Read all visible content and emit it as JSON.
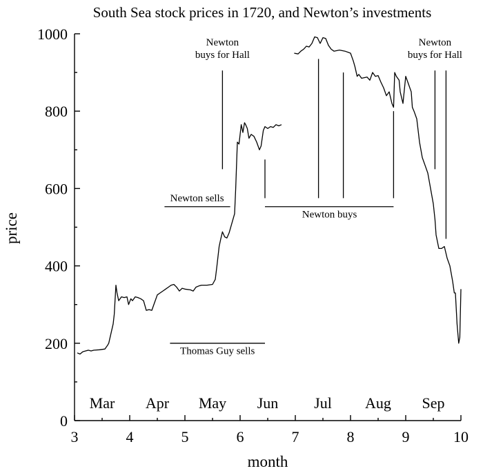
{
  "chart_data": {
    "type": "line",
    "title": "South Sea stock prices in 1720, and Newton’s investments",
    "xlabel": "month",
    "ylabel": "price",
    "xlim": [
      3,
      10
    ],
    "ylim": [
      0,
      1000
    ],
    "xticks": [
      3,
      4,
      5,
      6,
      7,
      8,
      9,
      10
    ],
    "yticks": [
      0,
      200,
      400,
      600,
      800,
      1000
    ],
    "month_labels": [
      {
        "label": "Mar",
        "x": 3.5
      },
      {
        "label": "Apr",
        "x": 4.5
      },
      {
        "label": "May",
        "x": 5.5
      },
      {
        "label": "Jun",
        "x": 6.5
      },
      {
        "label": "Jul",
        "x": 7.5
      },
      {
        "label": "Aug",
        "x": 8.5
      },
      {
        "label": "Sep",
        "x": 9.5
      }
    ],
    "series": [
      {
        "name": "South Sea stock price (segment 1)",
        "points": [
          [
            3.05,
            175
          ],
          [
            3.1,
            172
          ],
          [
            3.15,
            178
          ],
          [
            3.2,
            180
          ],
          [
            3.25,
            182
          ],
          [
            3.3,
            180
          ],
          [
            3.35,
            182
          ],
          [
            3.45,
            183
          ],
          [
            3.55,
            185
          ],
          [
            3.6,
            195
          ],
          [
            3.62,
            200
          ],
          [
            3.66,
            225
          ],
          [
            3.7,
            250
          ],
          [
            3.72,
            275
          ],
          [
            3.75,
            350
          ],
          [
            3.77,
            330
          ],
          [
            3.8,
            310
          ],
          [
            3.85,
            320
          ],
          [
            3.9,
            318
          ],
          [
            3.95,
            320
          ],
          [
            3.98,
            300
          ],
          [
            4.02,
            315
          ],
          [
            4.05,
            310
          ],
          [
            4.1,
            320
          ],
          [
            4.15,
            318
          ],
          [
            4.2,
            315
          ],
          [
            4.25,
            310
          ],
          [
            4.3,
            285
          ],
          [
            4.35,
            287
          ],
          [
            4.4,
            285
          ],
          [
            4.45,
            305
          ],
          [
            4.5,
            325
          ],
          [
            4.55,
            330
          ],
          [
            4.6,
            335
          ],
          [
            4.65,
            340
          ],
          [
            4.7,
            345
          ],
          [
            4.75,
            350
          ],
          [
            4.8,
            352
          ],
          [
            4.85,
            345
          ],
          [
            4.9,
            335
          ],
          [
            4.95,
            342
          ],
          [
            5.0,
            340
          ],
          [
            5.1,
            338
          ],
          [
            5.15,
            335
          ],
          [
            5.2,
            345
          ],
          [
            5.25,
            348
          ],
          [
            5.3,
            350
          ],
          [
            5.4,
            350
          ],
          [
            5.5,
            352
          ],
          [
            5.55,
            365
          ],
          [
            5.58,
            400
          ],
          [
            5.62,
            450
          ],
          [
            5.65,
            470
          ],
          [
            5.68,
            488
          ],
          [
            5.72,
            475
          ],
          [
            5.76,
            472
          ],
          [
            5.8,
            485
          ],
          [
            5.85,
            510
          ],
          [
            5.9,
            535
          ],
          [
            5.92,
            600
          ],
          [
            5.95,
            720
          ],
          [
            5.98,
            715
          ],
          [
            6.0,
            740
          ],
          [
            6.02,
            765
          ],
          [
            6.05,
            745
          ],
          [
            6.08,
            770
          ],
          [
            6.1,
            765
          ],
          [
            6.13,
            755
          ],
          [
            6.16,
            730
          ],
          [
            6.2,
            740
          ],
          [
            6.25,
            735
          ],
          [
            6.3,
            720
          ],
          [
            6.35,
            700
          ],
          [
            6.38,
            710
          ],
          [
            6.42,
            750
          ],
          [
            6.45,
            760
          ],
          [
            6.5,
            755
          ],
          [
            6.55,
            760
          ],
          [
            6.6,
            758
          ],
          [
            6.65,
            765
          ],
          [
            6.7,
            762
          ],
          [
            6.75,
            765
          ]
        ]
      },
      {
        "name": "South Sea stock price (segment 2)",
        "points": [
          [
            6.98,
            950
          ],
          [
            7.05,
            948
          ],
          [
            7.1,
            955
          ],
          [
            7.15,
            960
          ],
          [
            7.2,
            968
          ],
          [
            7.25,
            966
          ],
          [
            7.3,
            975
          ],
          [
            7.35,
            992
          ],
          [
            7.4,
            990
          ],
          [
            7.45,
            975
          ],
          [
            7.5,
            990
          ],
          [
            7.55,
            988
          ],
          [
            7.6,
            970
          ],
          [
            7.65,
            960
          ],
          [
            7.7,
            955
          ],
          [
            7.8,
            958
          ],
          [
            7.9,
            955
          ],
          [
            8.0,
            950
          ],
          [
            8.05,
            930
          ],
          [
            8.08,
            915
          ],
          [
            8.12,
            890
          ],
          [
            8.15,
            895
          ],
          [
            8.2,
            885
          ],
          [
            8.3,
            888
          ],
          [
            8.35,
            880
          ],
          [
            8.4,
            900
          ],
          [
            8.45,
            890
          ],
          [
            8.5,
            892
          ],
          [
            8.55,
            875
          ],
          [
            8.6,
            860
          ],
          [
            8.65,
            840
          ],
          [
            8.7,
            850
          ],
          [
            8.75,
            820
          ],
          [
            8.78,
            810
          ],
          [
            8.8,
            900
          ],
          [
            8.83,
            890
          ],
          [
            8.88,
            880
          ],
          [
            8.9,
            850
          ],
          [
            8.95,
            820
          ],
          [
            9.0,
            890
          ],
          [
            9.05,
            870
          ],
          [
            9.1,
            850
          ],
          [
            9.12,
            810
          ],
          [
            9.15,
            800
          ],
          [
            9.2,
            780
          ],
          [
            9.25,
            720
          ],
          [
            9.3,
            680
          ],
          [
            9.35,
            660
          ],
          [
            9.4,
            640
          ],
          [
            9.45,
            600
          ],
          [
            9.5,
            560
          ],
          [
            9.53,
            520
          ],
          [
            9.55,
            480
          ],
          [
            9.6,
            445
          ],
          [
            9.65,
            445
          ],
          [
            9.7,
            450
          ],
          [
            9.75,
            420
          ],
          [
            9.8,
            400
          ],
          [
            9.85,
            360
          ],
          [
            9.88,
            330
          ],
          [
            9.9,
            330
          ],
          [
            9.93,
            250
          ],
          [
            9.96,
            200
          ],
          [
            9.98,
            215
          ],
          [
            10.0,
            340
          ]
        ]
      }
    ],
    "annotations": [
      {
        "text_lines": [
          "Newton",
          "buys for Hall"
        ],
        "vlines": [
          {
            "x": 5.68,
            "y0": 650,
            "y1": 905
          }
        ],
        "text_x": 5.68,
        "text_y": 970
      },
      {
        "text_lines": [
          "Newton",
          "buys for Hall"
        ],
        "vlines": [
          {
            "x": 9.53,
            "y0": 650,
            "y1": 905
          },
          {
            "x": 9.73,
            "y0": 470,
            "y1": 905
          }
        ],
        "text_x": 9.53,
        "text_y": 970
      },
      {
        "text_lines": [
          "Newton sells"
        ],
        "hline": {
          "x0": 4.63,
          "x1": 5.82,
          "y": 553
        },
        "text_x": 5.22,
        "text_y": 567
      },
      {
        "text_lines": [
          "Newton buys"
        ],
        "hline": {
          "x0": 6.45,
          "x1": 8.78,
          "y": 553
        },
        "text_x": 7.62,
        "text_y": 525
      },
      {
        "text_lines": [
          "Thomas Guy sells"
        ],
        "hline": {
          "x0": 4.73,
          "x1": 6.45,
          "y": 200
        },
        "text_x": 5.59,
        "text_y": 172
      },
      {
        "text_lines": [],
        "vlines": [
          {
            "x": 6.45,
            "y0": 575,
            "y1": 675
          },
          {
            "x": 7.42,
            "y0": 575,
            "y1": 935
          },
          {
            "x": 7.87,
            "y0": 575,
            "y1": 900
          },
          {
            "x": 8.78,
            "y0": 575,
            "y1": 800
          }
        ]
      }
    ]
  }
}
